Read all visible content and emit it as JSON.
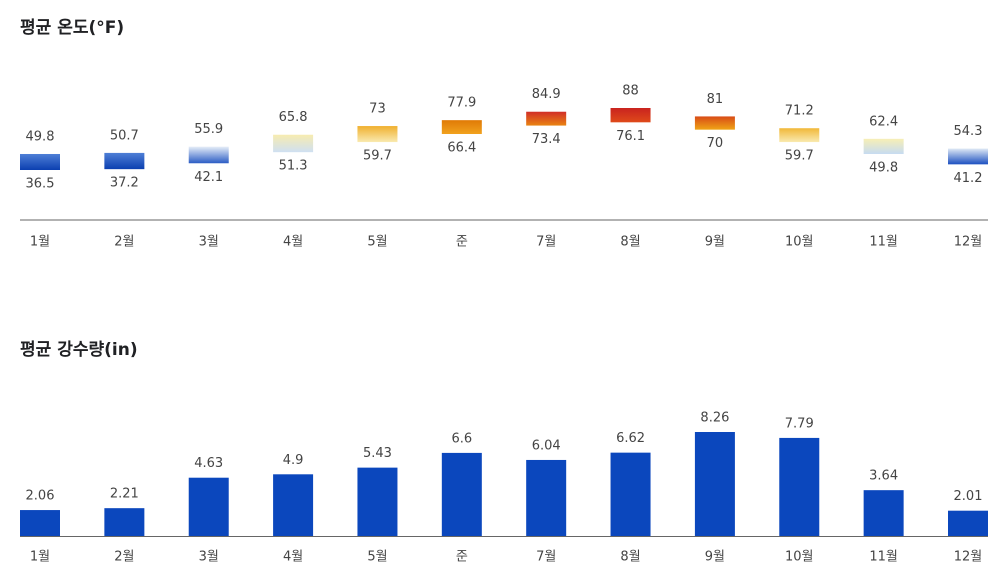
{
  "chart_data": [
    {
      "type": "range_bar",
      "title": "평균 온도(°F)",
      "categories": [
        "1월",
        "2월",
        "3월",
        "4월",
        "5월",
        "준",
        "7월",
        "8월",
        "9월",
        "10월",
        "11월",
        "12월"
      ],
      "high_values": [
        49.8,
        50.7,
        55.9,
        65.8,
        73,
        77.9,
        84.9,
        88,
        81,
        71.2,
        62.4,
        54.3
      ],
      "low_values": [
        36.5,
        37.2,
        42.1,
        51.3,
        59.7,
        66.4,
        73.4,
        76.1,
        70,
        59.7,
        49.8,
        41.2
      ],
      "colors": [
        [
          "#4f7fd6",
          "#0b3fb0"
        ],
        [
          "#4f7fd6",
          "#0b3fb0"
        ],
        [
          "#e6eef8",
          "#2a5cc4"
        ],
        [
          "#f7ecb0",
          "#cfe0f2"
        ],
        [
          "#f0b02e",
          "#f9eab0"
        ],
        [
          "#e07a06",
          "#f1a21e"
        ],
        [
          "#d12e28",
          "#e98412"
        ],
        [
          "#c9231f",
          "#df4a1a"
        ],
        [
          "#d84b16",
          "#f0a416"
        ],
        [
          "#f1b838",
          "#f9eab0"
        ],
        [
          "#f7efb6",
          "#c6dbf1"
        ],
        [
          "#dfe9f5",
          "#1b4fc0"
        ]
      ]
    },
    {
      "type": "bar",
      "title": "평균 강수량(in)",
      "categories": [
        "1월",
        "2월",
        "3월",
        "4월",
        "5월",
        "준",
        "7월",
        "8월",
        "9월",
        "10월",
        "11월",
        "12월"
      ],
      "values": [
        2.06,
        2.21,
        4.63,
        4.9,
        5.43,
        6.6,
        6.04,
        6.62,
        8.26,
        7.79,
        3.64,
        2.01
      ],
      "color": "#0b47bd"
    }
  ]
}
